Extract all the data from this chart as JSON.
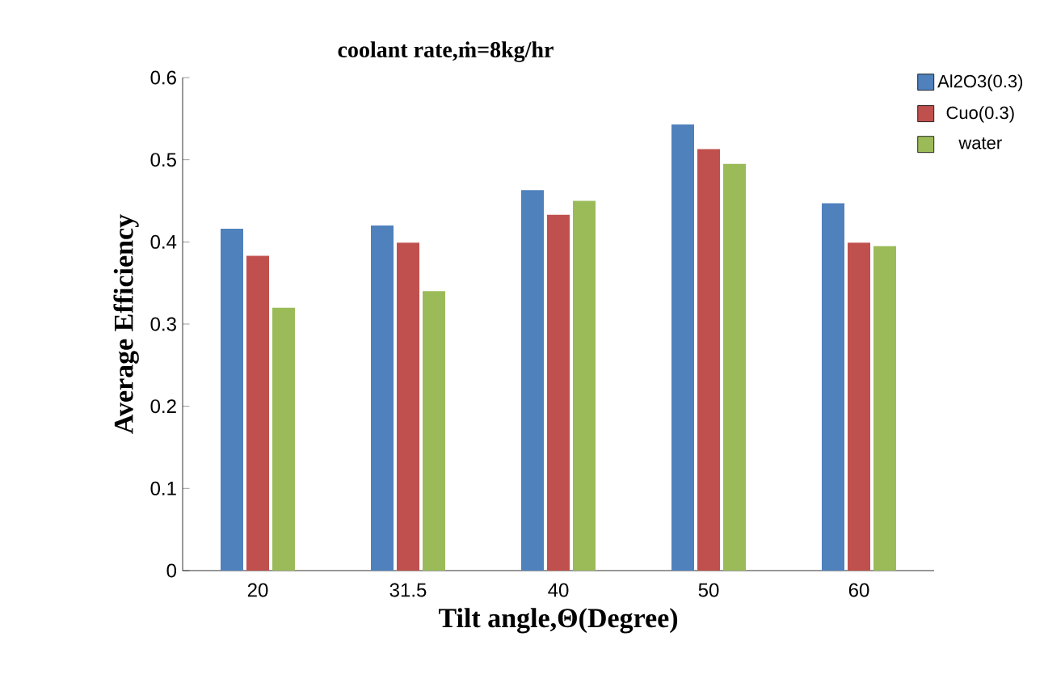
{
  "chart_data": {
    "type": "bar",
    "title": "coolant rate,ṁ=8kg/hr",
    "xlabel": "Tilt angle,Θ(Degree)",
    "ylabel": "Average Efficiency",
    "categories": [
      "20",
      "31.5",
      "40",
      "50",
      "60"
    ],
    "series": [
      {
        "name": "Al2O3(0.3)",
        "color": "#4f81bd",
        "values": [
          0.416,
          0.42,
          0.463,
          0.543,
          0.447
        ]
      },
      {
        "name": "Cuo(0.3)",
        "color": "#c0504d",
        "values": [
          0.383,
          0.399,
          0.433,
          0.513,
          0.399
        ]
      },
      {
        "name": "water",
        "color": "#9bbb59",
        "values": [
          0.32,
          0.34,
          0.45,
          0.495,
          0.395
        ]
      }
    ],
    "ylim": [
      0,
      0.6
    ],
    "yticks": [
      0,
      0.1,
      0.2,
      0.3,
      0.4,
      0.5,
      0.6
    ],
    "legend": "top right",
    "grid": false
  }
}
